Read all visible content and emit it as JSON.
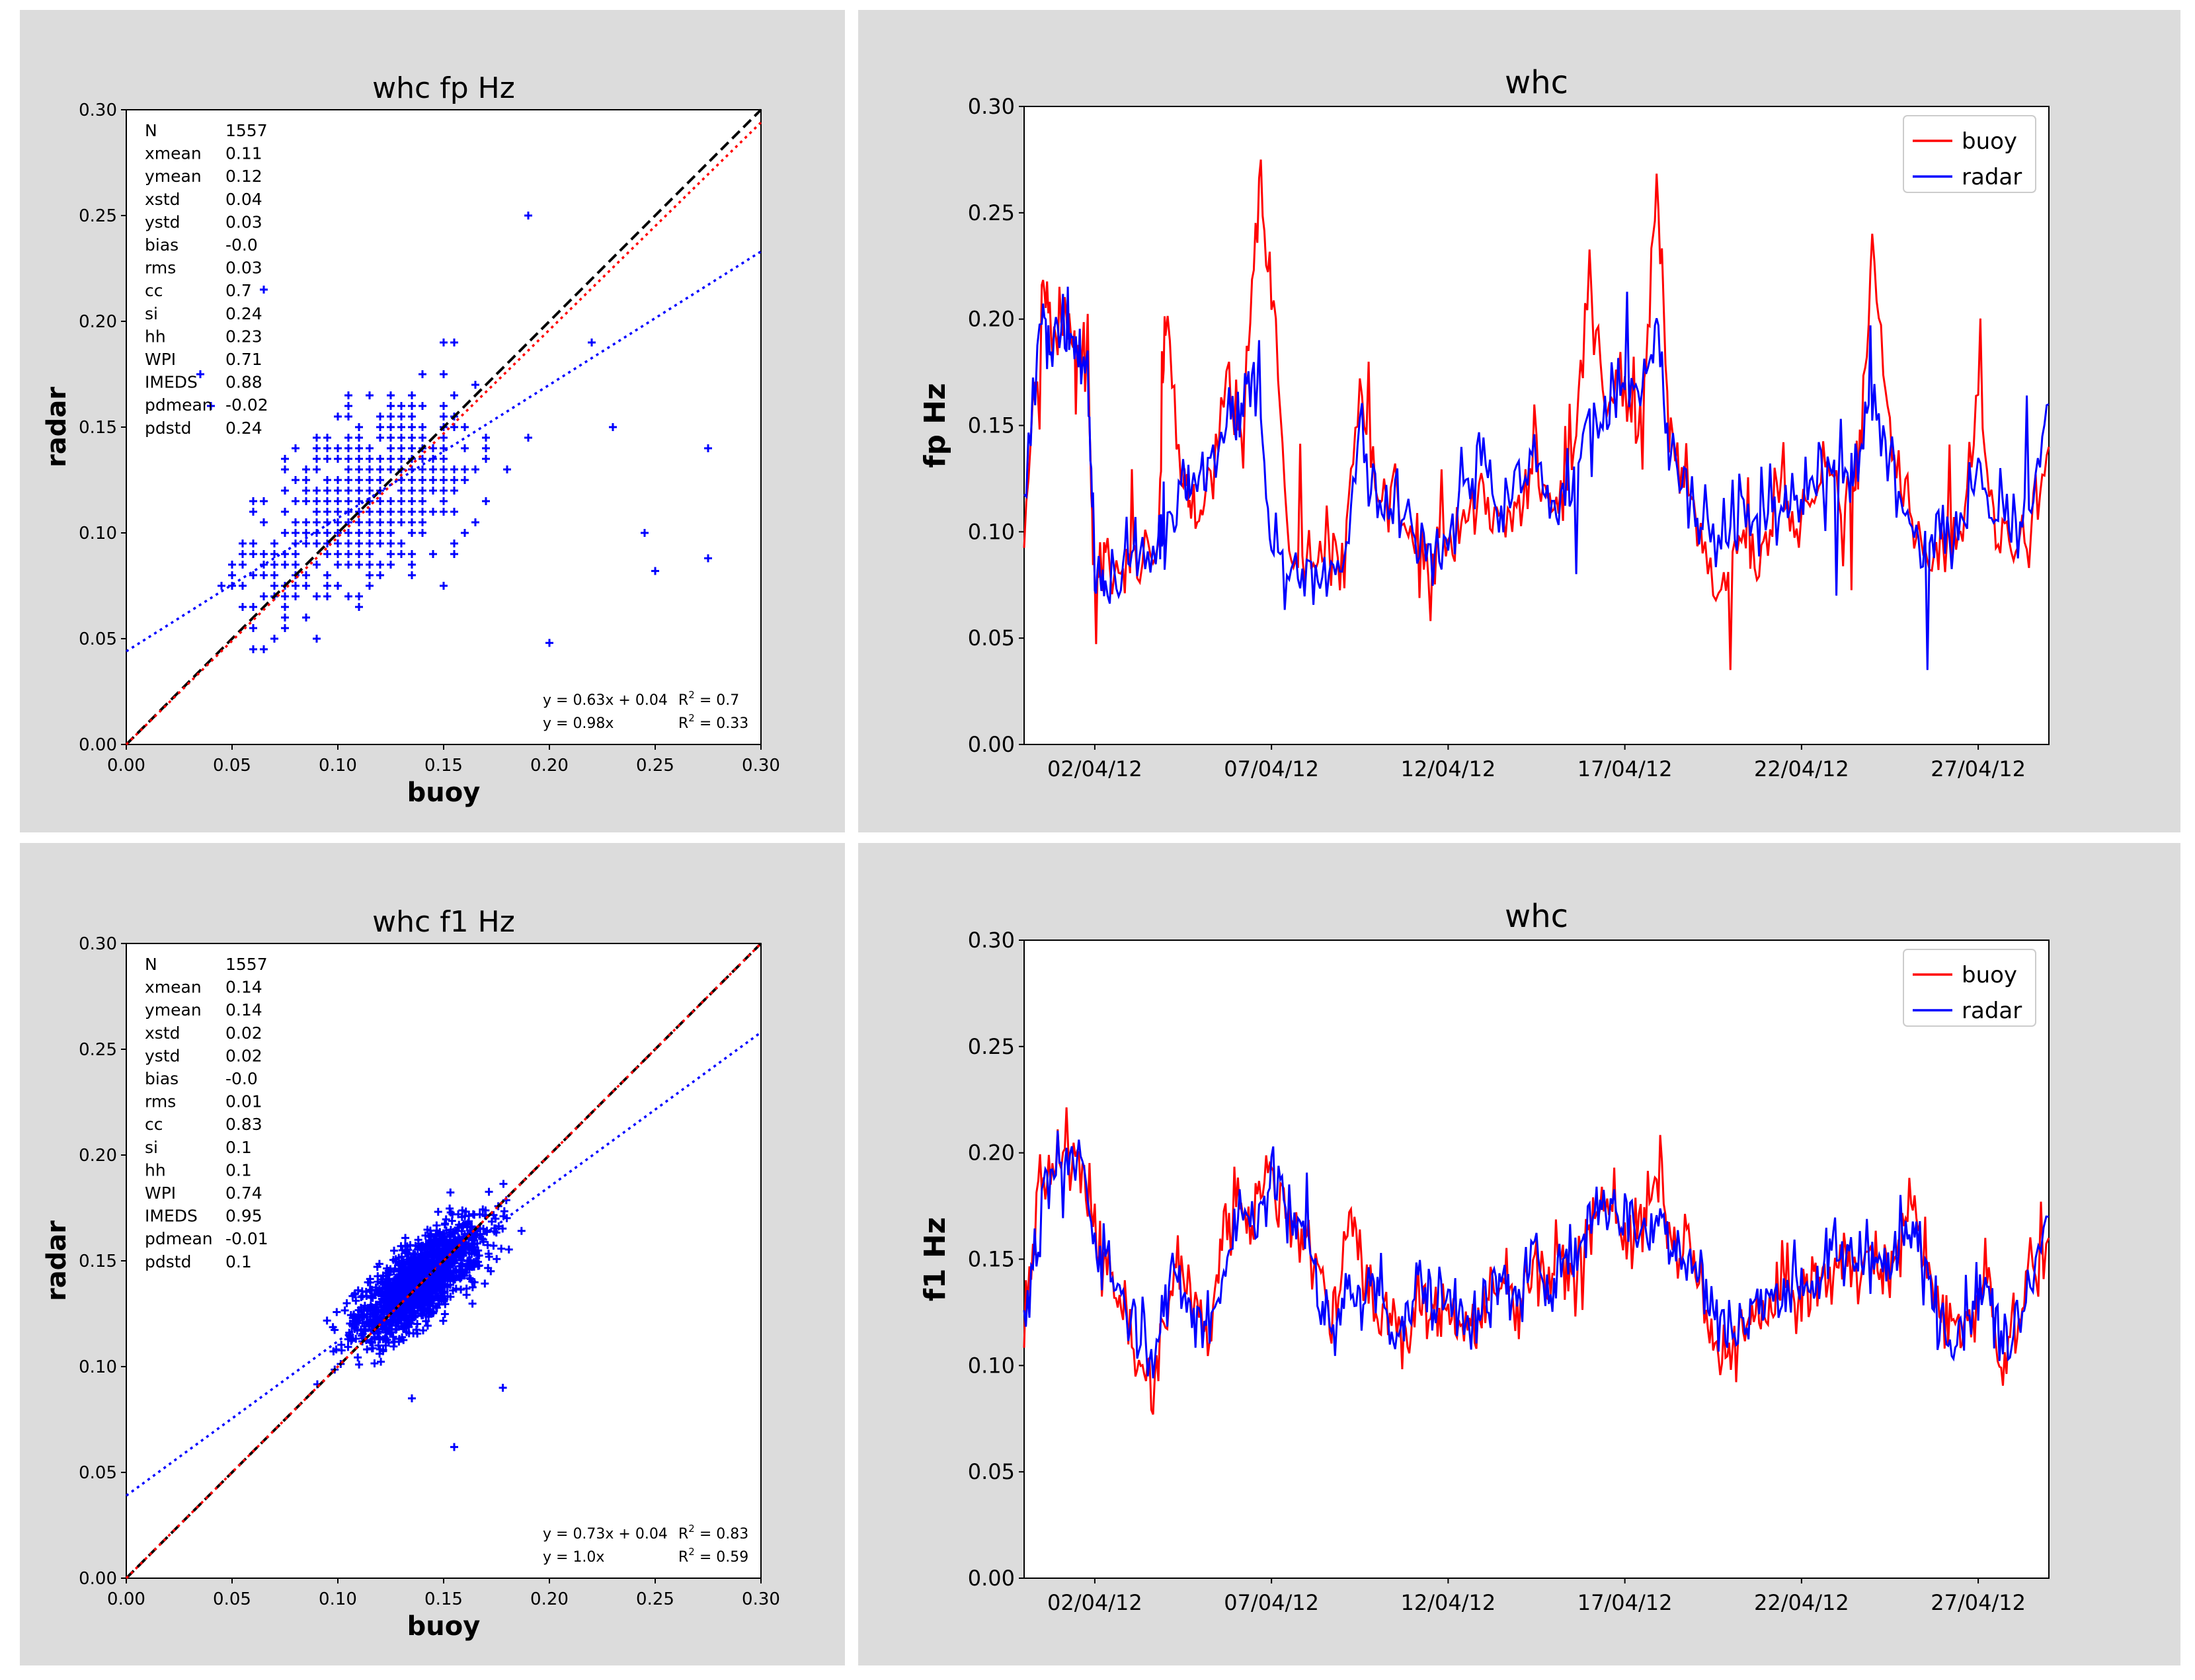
{
  "colors": {
    "buoy": "#ff0000",
    "radar": "#0000ff",
    "identity": "#000000",
    "panel_bg": "#dcdcdc"
  },
  "chart_data": [
    {
      "type": "scatter",
      "title": "whc fp Hz",
      "xlabel": "buoy",
      "ylabel": "radar",
      "xlim": [
        0,
        0.3
      ],
      "ylim": [
        0,
        0.3
      ],
      "ticks": [
        "0.00",
        "0.05",
        "0.10",
        "0.15",
        "0.20",
        "0.25",
        "0.30"
      ],
      "stats": [
        [
          "N",
          "1557"
        ],
        [
          "xmean",
          "0.11"
        ],
        [
          "ymean",
          "0.12"
        ],
        [
          "xstd",
          "0.04"
        ],
        [
          "ystd",
          "0.03"
        ],
        [
          "bias",
          "-0.0"
        ],
        [
          "rms",
          "0.03"
        ],
        [
          "cc",
          "0.7"
        ],
        [
          "si",
          "0.24"
        ],
        [
          "hh",
          "0.23"
        ],
        [
          "WPI",
          "0.71"
        ],
        [
          "IMEDS",
          "0.88"
        ],
        [
          "pdmean",
          "-0.02"
        ],
        [
          "pdstd",
          "0.24"
        ]
      ],
      "fit_linear": {
        "slope": 0.63,
        "intercept": 0.044,
        "label": "y = 0.63x + 0.04",
        "r2": "0.7"
      },
      "fit_origin": {
        "slope": 0.98,
        "label": "y = 0.98x",
        "r2": "0.33"
      },
      "points_mode": "discrete"
    },
    {
      "type": "line",
      "title": "whc",
      "ylabel": "fp Hz",
      "ylim": [
        0,
        0.3
      ],
      "yticks": [
        "0.00",
        "0.05",
        "0.10",
        "0.15",
        "0.20",
        "0.25",
        "0.30"
      ],
      "xlim_days": [
        -2.0,
        27.0
      ],
      "xticks": [
        {
          "day": 0,
          "label": "02/04/12"
        },
        {
          "day": 5,
          "label": "07/04/12"
        },
        {
          "day": 10,
          "label": "12/04/12"
        },
        {
          "day": 15,
          "label": "17/04/12"
        },
        {
          "day": 20,
          "label": "22/04/12"
        },
        {
          "day": 25,
          "label": "27/04/12"
        }
      ],
      "legend": [
        "buoy",
        "radar"
      ],
      "series": [
        {
          "name": "buoy",
          "days": [
            -2.0,
            -1.5,
            -1.2,
            -0.8,
            -0.5,
            -0.2,
            0.0,
            0.3,
            0.8,
            1.2,
            1.8,
            2.0,
            2.5,
            2.8,
            3.2,
            3.8,
            4.2,
            4.6,
            5.0,
            5.5,
            6.0,
            6.5,
            7.0,
            7.5,
            8.0,
            8.5,
            9.0,
            9.5,
            10.0,
            10.5,
            11.0,
            11.5,
            12.0,
            12.5,
            13.0,
            13.5,
            14.0,
            14.5,
            15.0,
            15.5,
            15.9,
            16.3,
            16.8,
            17.2,
            17.8,
            18.3,
            18.8,
            19.3,
            19.8,
            20.3,
            20.8,
            21.3,
            21.6,
            22.0,
            22.5,
            23.0,
            23.5,
            24.0,
            24.5,
            25.0,
            25.5,
            26.0,
            26.5,
            27.0
          ],
          "values": [
            0.1,
            0.22,
            0.19,
            0.2,
            0.18,
            0.19,
            0.08,
            0.09,
            0.08,
            0.09,
            0.1,
            0.21,
            0.12,
            0.11,
            0.12,
            0.17,
            0.15,
            0.26,
            0.22,
            0.09,
            0.08,
            0.09,
            0.08,
            0.17,
            0.11,
            0.12,
            0.09,
            0.08,
            0.1,
            0.11,
            0.12,
            0.1,
            0.11,
            0.13,
            0.11,
            0.12,
            0.22,
            0.16,
            0.17,
            0.15,
            0.27,
            0.14,
            0.12,
            0.09,
            0.07,
            0.1,
            0.08,
            0.12,
            0.1,
            0.12,
            0.13,
            0.11,
            0.13,
            0.23,
            0.14,
            0.11,
            0.09,
            0.1,
            0.09,
            0.17,
            0.1,
            0.09,
            0.1,
            0.14
          ]
        },
        {
          "name": "radar",
          "days": [
            -2.0,
            -1.5,
            -1.2,
            -0.8,
            -0.5,
            -0.2,
            0.0,
            0.3,
            0.8,
            1.2,
            1.8,
            2.0,
            2.5,
            2.8,
            3.2,
            3.8,
            4.2,
            4.6,
            5.0,
            5.5,
            6.0,
            6.5,
            7.0,
            7.5,
            8.0,
            8.5,
            9.0,
            9.5,
            10.0,
            10.5,
            11.0,
            11.5,
            12.0,
            12.5,
            13.0,
            13.5,
            14.0,
            14.5,
            15.0,
            15.5,
            15.9,
            16.3,
            16.8,
            17.2,
            17.8,
            18.3,
            18.8,
            19.3,
            19.8,
            20.3,
            20.8,
            21.3,
            21.6,
            22.0,
            22.5,
            23.0,
            23.5,
            24.0,
            24.5,
            25.0,
            25.5,
            26.0,
            26.5,
            27.0
          ],
          "values": [
            0.11,
            0.2,
            0.19,
            0.2,
            0.19,
            0.18,
            0.08,
            0.08,
            0.08,
            0.09,
            0.09,
            0.1,
            0.12,
            0.12,
            0.13,
            0.16,
            0.16,
            0.18,
            0.09,
            0.08,
            0.08,
            0.08,
            0.08,
            0.15,
            0.11,
            0.12,
            0.1,
            0.09,
            0.1,
            0.12,
            0.14,
            0.11,
            0.12,
            0.14,
            0.11,
            0.12,
            0.15,
            0.16,
            0.17,
            0.16,
            0.2,
            0.14,
            0.12,
            0.1,
            0.1,
            0.11,
            0.1,
            0.12,
            0.11,
            0.12,
            0.13,
            0.12,
            0.13,
            0.16,
            0.14,
            0.1,
            0.09,
            0.1,
            0.1,
            0.13,
            0.1,
            0.11,
            0.11,
            0.16
          ]
        }
      ]
    },
    {
      "type": "scatter",
      "title": "whc f1 Hz",
      "xlabel": "buoy",
      "ylabel": "radar",
      "xlim": [
        0,
        0.3
      ],
      "ylim": [
        0,
        0.3
      ],
      "ticks": [
        "0.00",
        "0.05",
        "0.10",
        "0.15",
        "0.20",
        "0.25",
        "0.30"
      ],
      "stats": [
        [
          "N",
          "1557"
        ],
        [
          "xmean",
          "0.14"
        ],
        [
          "ymean",
          "0.14"
        ],
        [
          "xstd",
          "0.02"
        ],
        [
          "ystd",
          "0.02"
        ],
        [
          "bias",
          "-0.0"
        ],
        [
          "rms",
          "0.01"
        ],
        [
          "cc",
          "0.83"
        ],
        [
          "si",
          "0.1"
        ],
        [
          "hh",
          "0.1"
        ],
        [
          "WPI",
          "0.74"
        ],
        [
          "IMEDS",
          "0.95"
        ],
        [
          "pdmean",
          "-0.01"
        ],
        [
          "pdstd",
          "0.1"
        ]
      ],
      "fit_linear": {
        "slope": 0.73,
        "intercept": 0.039,
        "label": "y = 0.73x + 0.04",
        "r2": "0.83"
      },
      "fit_origin": {
        "slope": 1.0,
        "label": "y = 1.0x",
        "r2": "0.59"
      },
      "points_mode": "cloud"
    },
    {
      "type": "line",
      "title": "whc",
      "ylabel": "f1 Hz",
      "ylim": [
        0,
        0.3
      ],
      "yticks": [
        "0.00",
        "0.05",
        "0.10",
        "0.15",
        "0.20",
        "0.25",
        "0.30"
      ],
      "xlim_days": [
        -2.0,
        27.0
      ],
      "xticks": [
        {
          "day": 0,
          "label": "02/04/12"
        },
        {
          "day": 5,
          "label": "07/04/12"
        },
        {
          "day": 10,
          "label": "12/04/12"
        },
        {
          "day": 15,
          "label": "17/04/12"
        },
        {
          "day": 20,
          "label": "22/04/12"
        },
        {
          "day": 25,
          "label": "27/04/12"
        }
      ],
      "legend": [
        "buoy",
        "radar"
      ],
      "series": [
        {
          "name": "buoy",
          "days": [
            -2.0,
            -1.6,
            -1.2,
            -0.8,
            -0.4,
            0.0,
            0.4,
            0.8,
            1.2,
            1.6,
            2.0,
            2.4,
            2.8,
            3.2,
            3.6,
            4.0,
            4.4,
            4.8,
            5.2,
            5.6,
            6.0,
            6.4,
            6.8,
            7.2,
            7.6,
            8.0,
            8.4,
            8.8,
            9.2,
            9.6,
            10.0,
            10.4,
            10.8,
            11.2,
            11.6,
            12.0,
            12.4,
            12.8,
            13.2,
            13.6,
            14.0,
            14.4,
            14.8,
            15.2,
            15.6,
            16.0,
            16.4,
            16.8,
            17.2,
            17.6,
            18.0,
            18.4,
            18.8,
            19.2,
            19.6,
            20.0,
            20.4,
            20.8,
            21.2,
            21.6,
            22.0,
            22.4,
            22.8,
            23.2,
            23.6,
            24.0,
            24.4,
            24.8,
            25.2,
            25.6,
            26.0,
            26.4,
            27.0
          ],
          "values": [
            0.12,
            0.18,
            0.19,
            0.2,
            0.2,
            0.17,
            0.14,
            0.13,
            0.1,
            0.09,
            0.12,
            0.15,
            0.13,
            0.11,
            0.16,
            0.18,
            0.17,
            0.19,
            0.18,
            0.17,
            0.16,
            0.14,
            0.12,
            0.18,
            0.14,
            0.12,
            0.13,
            0.11,
            0.13,
            0.12,
            0.13,
            0.12,
            0.12,
            0.13,
            0.14,
            0.13,
            0.15,
            0.14,
            0.15,
            0.14,
            0.16,
            0.18,
            0.17,
            0.16,
            0.17,
            0.19,
            0.15,
            0.16,
            0.13,
            0.1,
            0.11,
            0.12,
            0.12,
            0.13,
            0.14,
            0.13,
            0.14,
            0.14,
            0.15,
            0.15,
            0.15,
            0.14,
            0.16,
            0.18,
            0.14,
            0.12,
            0.12,
            0.12,
            0.15,
            0.1,
            0.12,
            0.14,
            0.16
          ]
        },
        {
          "name": "radar",
          "days": [
            -2.0,
            -1.6,
            -1.2,
            -0.8,
            -0.4,
            0.0,
            0.4,
            0.8,
            1.2,
            1.6,
            2.0,
            2.4,
            2.8,
            3.2,
            3.6,
            4.0,
            4.4,
            4.8,
            5.2,
            5.6,
            6.0,
            6.4,
            6.8,
            7.2,
            7.6,
            8.0,
            8.4,
            8.8,
            9.2,
            9.6,
            10.0,
            10.4,
            10.8,
            11.2,
            11.6,
            12.0,
            12.4,
            12.8,
            13.2,
            13.6,
            14.0,
            14.4,
            14.8,
            15.2,
            15.6,
            16.0,
            16.4,
            16.8,
            17.2,
            17.6,
            18.0,
            18.4,
            18.8,
            19.2,
            19.6,
            20.0,
            20.4,
            20.8,
            21.2,
            21.6,
            22.0,
            22.4,
            22.8,
            23.2,
            23.6,
            24.0,
            24.4,
            24.8,
            25.2,
            25.6,
            26.0,
            26.4,
            27.0
          ],
          "values": [
            0.12,
            0.16,
            0.19,
            0.19,
            0.2,
            0.16,
            0.15,
            0.13,
            0.12,
            0.11,
            0.13,
            0.14,
            0.12,
            0.12,
            0.14,
            0.17,
            0.17,
            0.18,
            0.19,
            0.16,
            0.17,
            0.13,
            0.11,
            0.14,
            0.13,
            0.14,
            0.12,
            0.12,
            0.14,
            0.13,
            0.13,
            0.13,
            0.12,
            0.13,
            0.14,
            0.13,
            0.15,
            0.14,
            0.15,
            0.15,
            0.17,
            0.18,
            0.17,
            0.17,
            0.16,
            0.17,
            0.16,
            0.15,
            0.14,
            0.12,
            0.12,
            0.12,
            0.13,
            0.13,
            0.14,
            0.14,
            0.14,
            0.15,
            0.15,
            0.15,
            0.16,
            0.14,
            0.16,
            0.16,
            0.14,
            0.12,
            0.12,
            0.13,
            0.14,
            0.11,
            0.12,
            0.14,
            0.17
          ]
        }
      ]
    }
  ]
}
